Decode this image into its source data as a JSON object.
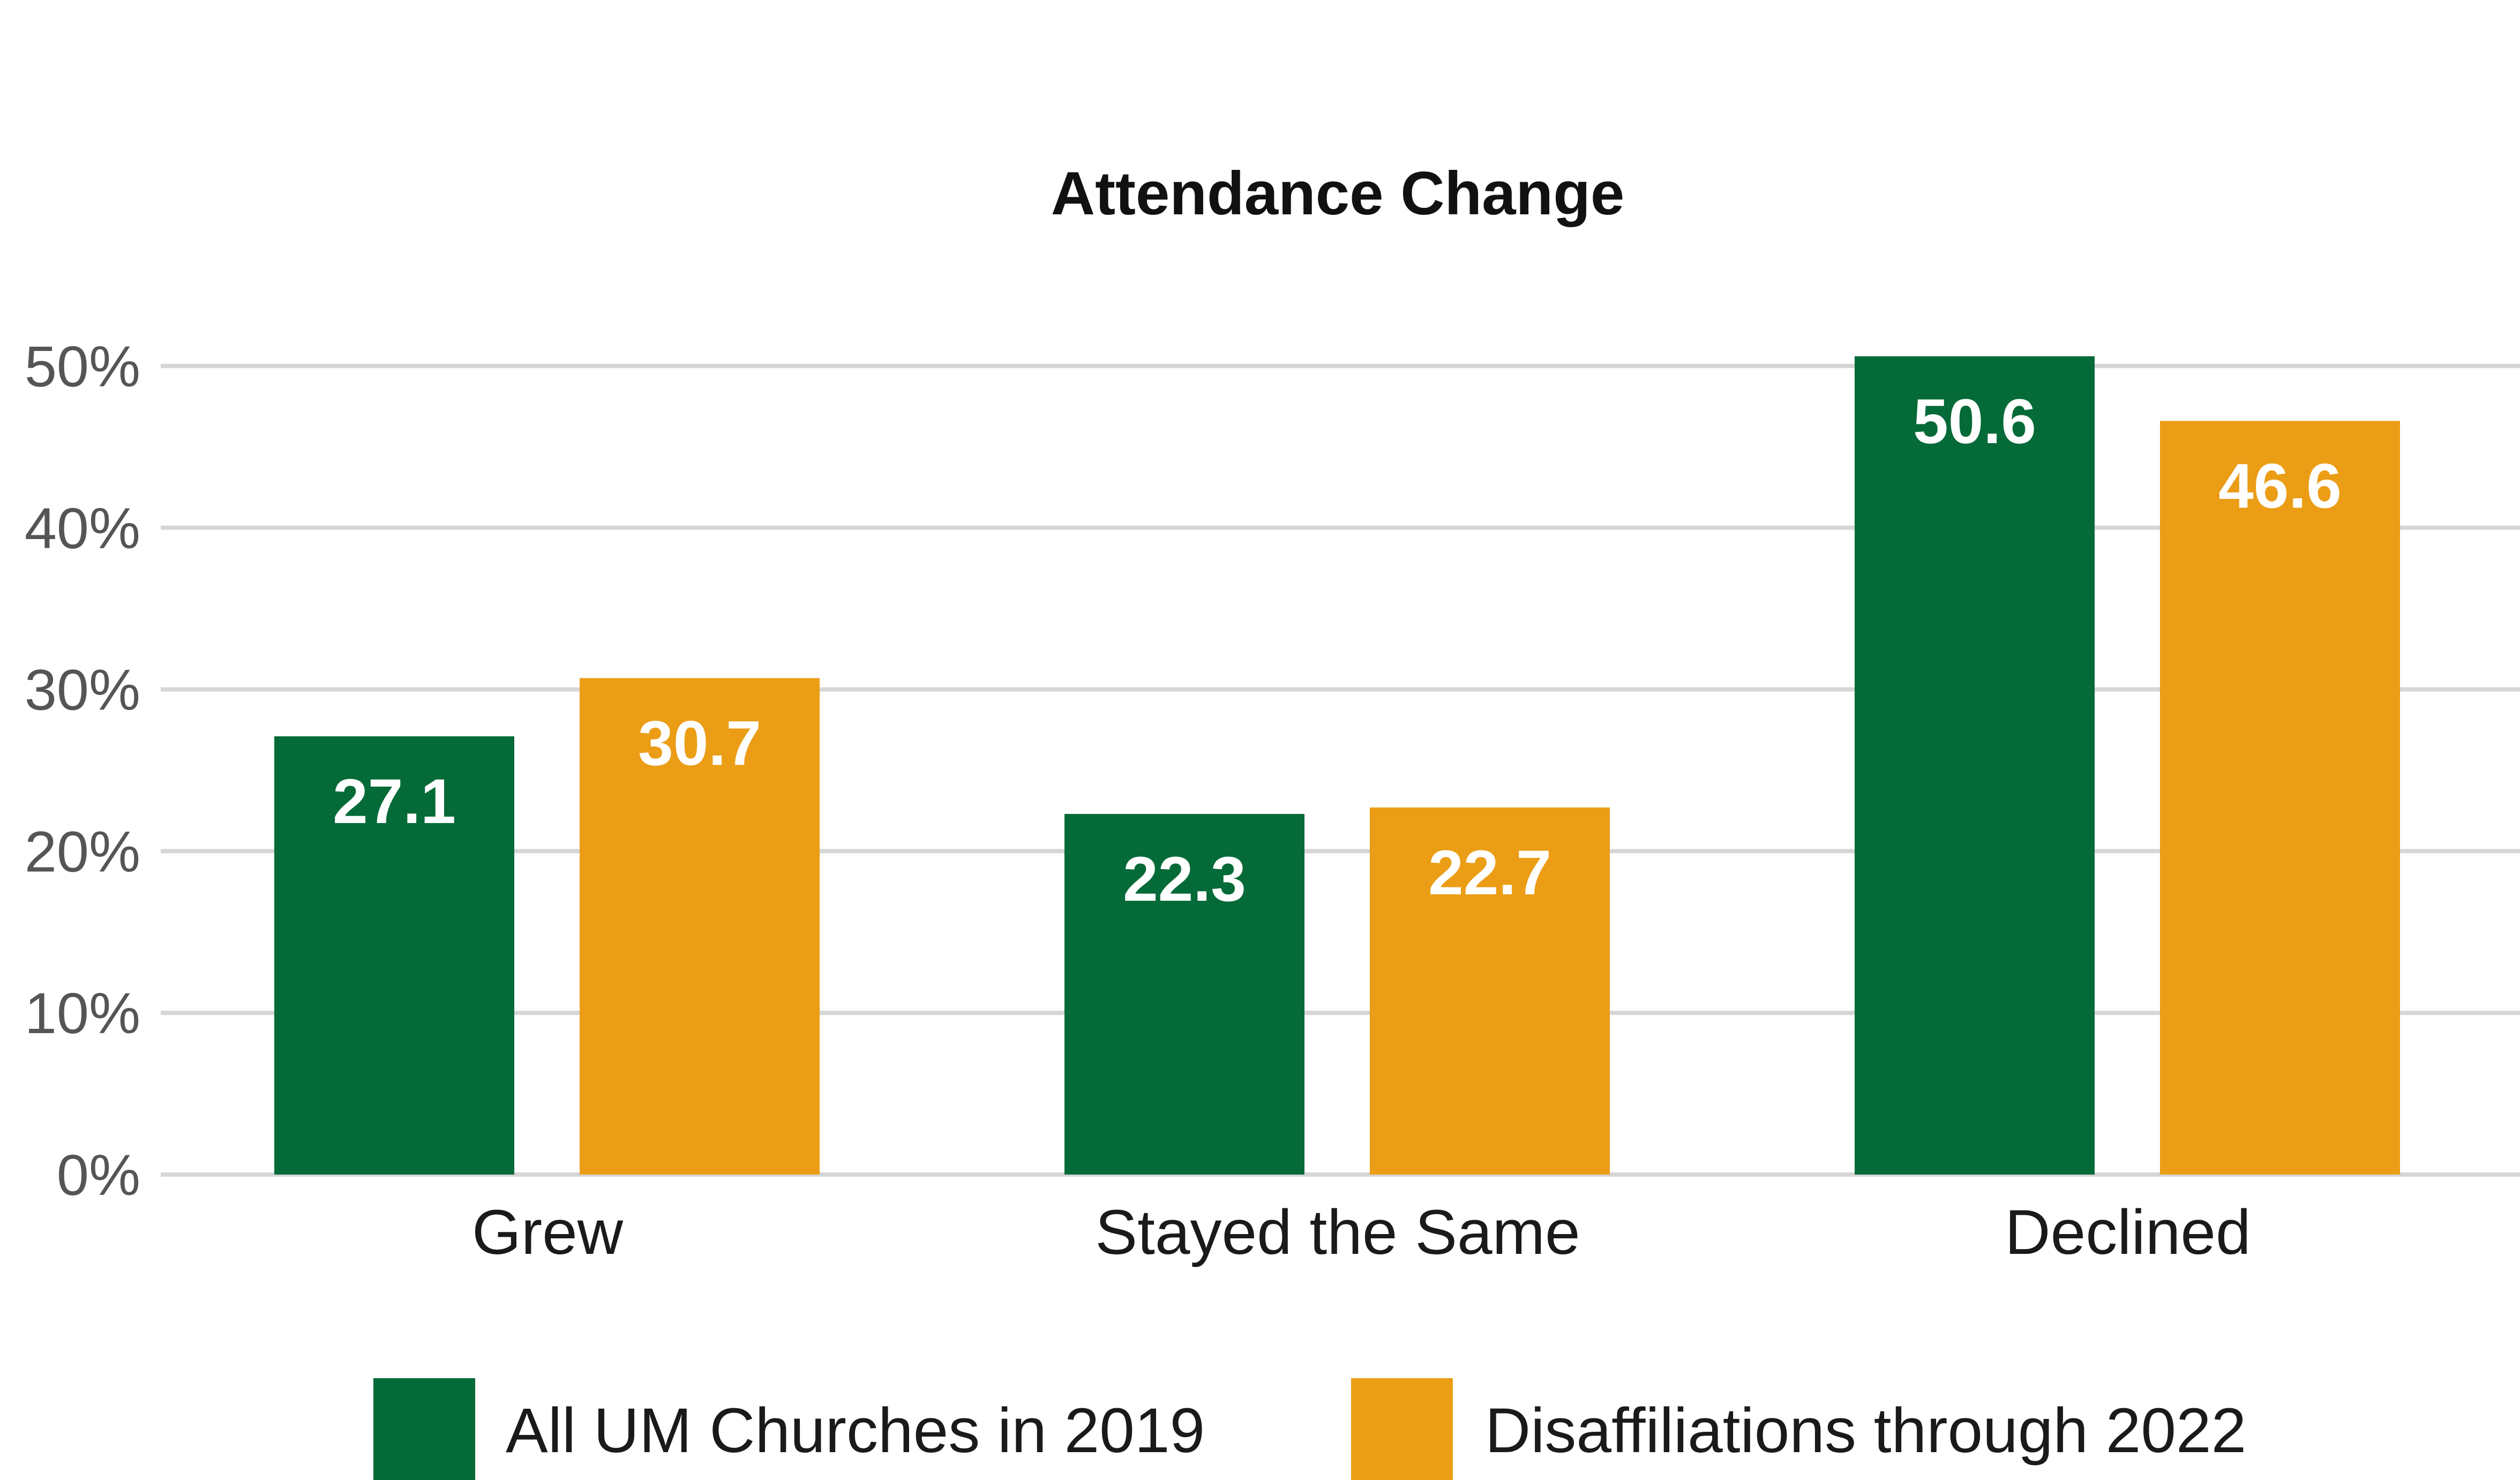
{
  "chart_data": {
    "type": "bar",
    "title": "Attendance Change",
    "xlabel": "",
    "ylabel": "",
    "categories": [
      "Grew",
      "Stayed the Same",
      "Declined"
    ],
    "series": [
      {
        "name": "All UM Churches in 2019",
        "color": "#046a38",
        "values": [
          27.1,
          22.3,
          50.6
        ]
      },
      {
        "name": "Disaffiliations through 2022",
        "color": "#eb9d15",
        "values": [
          30.7,
          22.7,
          46.6
        ]
      }
    ],
    "value_labels": [
      [
        "27.1",
        "22.3",
        "50.6"
      ],
      [
        "30.7",
        "22.7",
        "46.6"
      ]
    ],
    "ylim": [
      0,
      50
    ],
    "yticks": [
      0,
      10,
      20,
      30,
      40,
      50
    ],
    "ytick_labels": [
      "0%",
      "10%",
      "20%",
      "30%",
      "40%",
      "50%"
    ],
    "grid": true,
    "legend_position": "bottom"
  }
}
